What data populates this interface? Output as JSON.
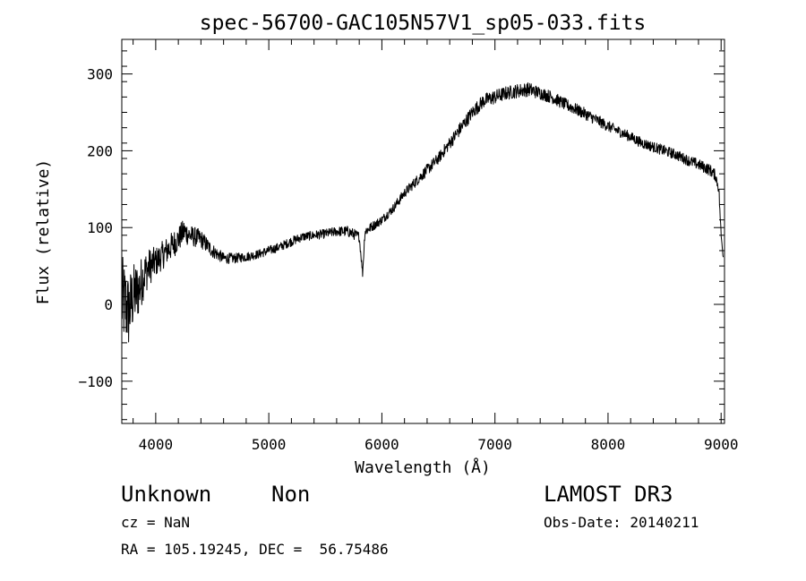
{
  "chart_data": {
    "type": "line",
    "title": "spec-56700-GAC105N57V1_sp05-033.fits",
    "xlabel": "Wavelength (Å)",
    "ylabel": "Flux (relative)",
    "xlim": [
      3700,
      9030
    ],
    "ylim": [
      -155,
      345
    ],
    "xticks": [
      4000,
      5000,
      6000,
      7000,
      8000,
      9000
    ],
    "yticks": [
      -100,
      0,
      100,
      200,
      300
    ],
    "grid": false,
    "series": [
      {
        "name": "flux",
        "x": [
          3700,
          3730,
          3760,
          3800,
          3850,
          3900,
          3950,
          4000,
          4100,
          4200,
          4250,
          4300,
          4400,
          4500,
          4600,
          4700,
          4800,
          4900,
          5000,
          5100,
          5200,
          5300,
          5400,
          5500,
          5600,
          5700,
          5800,
          5830,
          5850,
          5900,
          5950,
          6000,
          6100,
          6200,
          6300,
          6400,
          6500,
          6600,
          6700,
          6800,
          6900,
          7000,
          7100,
          7200,
          7300,
          7400,
          7500,
          7600,
          7700,
          7800,
          7900,
          8000,
          8100,
          8200,
          8300,
          8400,
          8500,
          8600,
          8700,
          8800,
          8900,
          8950,
          8980,
          9000,
          9020
        ],
        "y": [
          5,
          0,
          -10,
          10,
          20,
          40,
          50,
          55,
          70,
          85,
          95,
          90,
          85,
          70,
          60,
          60,
          62,
          65,
          70,
          75,
          82,
          88,
          90,
          92,
          95,
          95,
          88,
          40,
          95,
          100,
          105,
          110,
          125,
          145,
          160,
          175,
          190,
          210,
          230,
          250,
          265,
          270,
          275,
          278,
          280,
          275,
          270,
          262,
          255,
          248,
          240,
          232,
          225,
          218,
          210,
          205,
          200,
          195,
          188,
          182,
          175,
          168,
          150,
          90,
          60
        ],
        "noise": [
          0.45,
          0.42,
          0.38,
          0.33,
          0.28,
          0.22,
          0.18,
          0.15,
          0.12,
          0.09,
          0.08,
          0.07,
          0.065,
          0.06,
          0.055,
          0.05,
          0.045,
          0.04,
          0.04,
          0.035,
          0.035,
          0.03,
          0.03,
          0.03,
          0.03,
          0.035,
          0.035,
          0.035,
          0.035,
          0.03,
          0.025,
          0.025,
          0.022,
          0.02,
          0.02,
          0.02,
          0.018,
          0.018,
          0.018,
          0.016,
          0.016,
          0.016,
          0.015,
          0.015,
          0.015,
          0.014,
          0.014,
          0.014,
          0.014,
          0.014,
          0.014,
          0.014,
          0.014,
          0.014,
          0.015,
          0.015,
          0.016,
          0.016,
          0.017,
          0.018,
          0.02,
          0.02,
          0.02,
          0.02,
          0.02
        ]
      }
    ]
  },
  "info": {
    "class": "Unknown",
    "subclass": "Non",
    "survey": "LAMOST DR3",
    "cz": "cz = NaN",
    "obs_date": "Obs-Date: 20140211",
    "coords": "RA = 105.19245, DEC =  56.75486"
  }
}
